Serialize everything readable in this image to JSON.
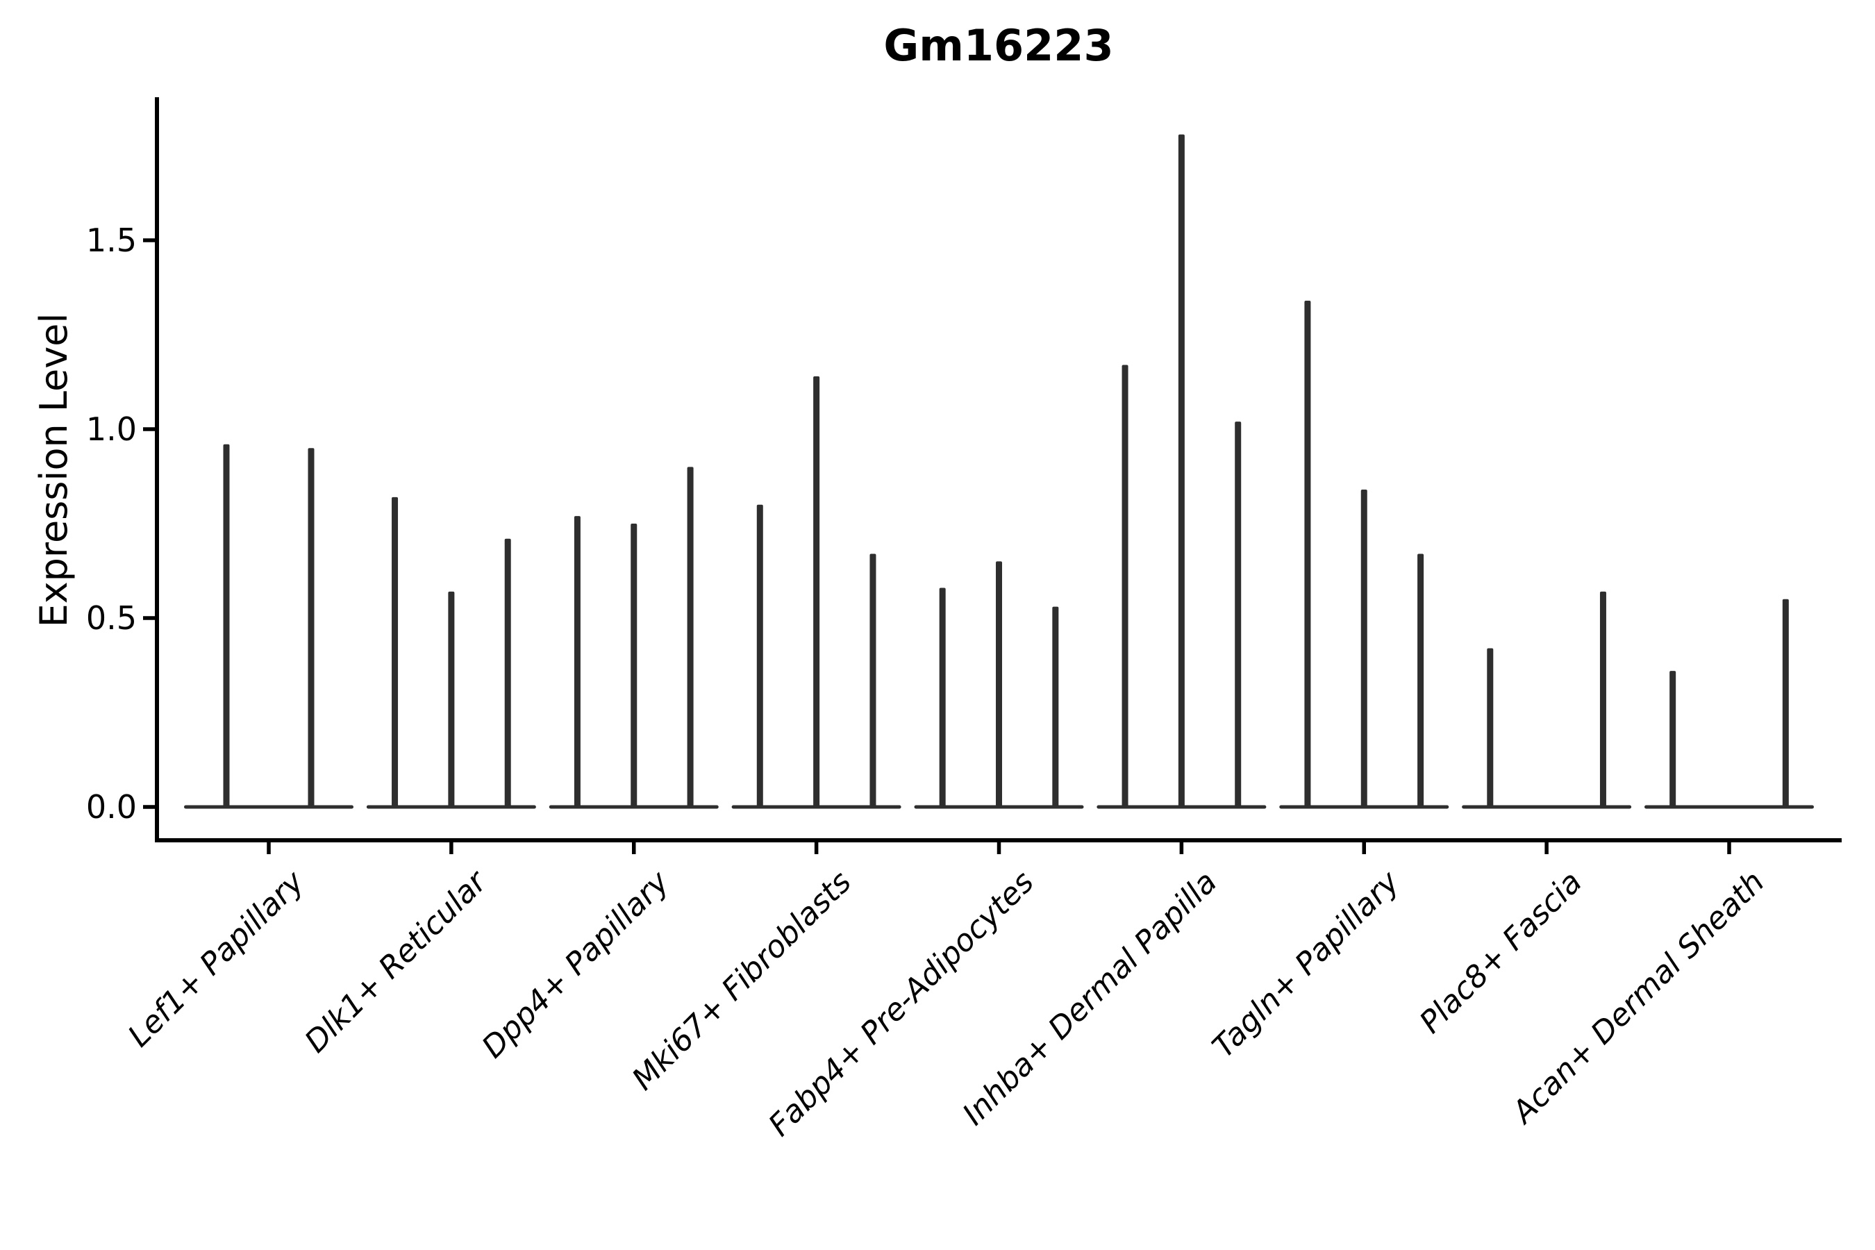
{
  "title": "Gm16223",
  "axes": {
    "ylabel": "Expression Level",
    "xlabel": "",
    "yticks": [
      {
        "label": "0.0",
        "value": 0.0
      },
      {
        "label": "0.5",
        "value": 0.5
      },
      {
        "label": "1.0",
        "value": 1.0
      },
      {
        "label": "1.5",
        "value": 1.5
      }
    ]
  },
  "colors": {
    "violin": "#2e2e2e",
    "axis": "#000000",
    "text": "#000000",
    "background": "#ffffff"
  },
  "chart_data": {
    "type": "violin",
    "title": "Gm16223",
    "ylabel": "Expression Level",
    "xlabel": "",
    "ylim": [
      -0.09,
      1.88
    ],
    "grid": false,
    "legend": "none",
    "note": "Sparse single-cell expression violins: each category shows 2-3 narrow sub-violins; each sub-violin is a flat base at 0 with a thin spike to its max expression; 0 means fully flat violin.",
    "categories": [
      "Lef1+ Papillary",
      "Dlk1+ Reticular",
      "Dpp4+ Papillary",
      "Mki67+ Fibroblasts",
      "Fabp4+ Pre-Adipocytes",
      "Inhba+ Dermal Papilla",
      "Tagln+ Papillary",
      "Plac8+ Fascia",
      "Acan+ Dermal Sheath"
    ],
    "series": [
      {
        "name": "Lef1+ Papillary",
        "values": [
          0.96,
          0.95
        ]
      },
      {
        "name": "Dlk1+ Reticular",
        "values": [
          0.82,
          0.57,
          0.71
        ]
      },
      {
        "name": "Dpp4+ Papillary",
        "values": [
          0.77,
          0.75,
          0.9
        ]
      },
      {
        "name": "Mki67+ Fibroblasts",
        "values": [
          0.8,
          1.14,
          0.67
        ]
      },
      {
        "name": "Fabp4+ Pre-Adipocytes",
        "values": [
          0.58,
          0.65,
          0.53
        ]
      },
      {
        "name": "Inhba+ Dermal Papilla",
        "values": [
          1.17,
          1.78,
          1.02
        ]
      },
      {
        "name": "Tagln+ Papillary",
        "values": [
          1.34,
          0.84,
          0.67
        ]
      },
      {
        "name": "Plac8+ Fascia",
        "values": [
          0.42,
          0.0,
          0.57
        ]
      },
      {
        "name": "Acan+ Dermal Sheath",
        "values": [
          0.36,
          0.0,
          0.55
        ]
      }
    ]
  }
}
